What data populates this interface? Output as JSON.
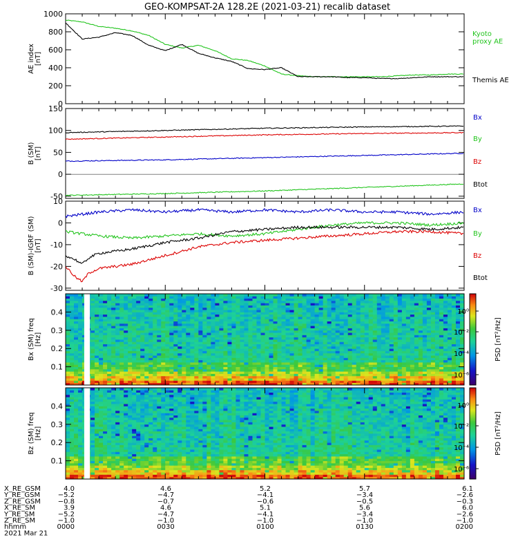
{
  "title": "GEO-KOMPSAT-2A 128.2E (2021-03-21) recalib dataset",
  "colors": {
    "black": "#000000",
    "blue": "#0000c8",
    "green": "#22c41d",
    "red": "#dc0000"
  },
  "chart_data": [
    {
      "type": "line",
      "ylabel": "AE index [nT]",
      "ylim": [
        0,
        1000
      ],
      "yticks": [
        0,
        200,
        400,
        600,
        800,
        1000
      ],
      "xlim": [
        0,
        120
      ],
      "x_units": "minutes since 2021-03-21 00:00",
      "legend_placement": "right",
      "series": [
        {
          "name": "Kyoto proxy AE",
          "color": "#22c41d",
          "x": [
            0,
            5,
            10,
            15,
            20,
            25,
            30,
            35,
            40,
            45,
            50,
            55,
            60,
            65,
            70,
            75,
            80,
            85,
            90,
            95,
            100,
            105,
            110,
            115,
            120
          ],
          "values": [
            930,
            910,
            860,
            840,
            810,
            760,
            660,
            620,
            650,
            590,
            500,
            480,
            420,
            330,
            310,
            300,
            300,
            300,
            300,
            300,
            310,
            320,
            320,
            330,
            330
          ]
        },
        {
          "name": "Themis AE",
          "color": "#000000",
          "x": [
            0,
            5,
            10,
            15,
            20,
            25,
            30,
            35,
            40,
            45,
            50,
            55,
            60,
            65,
            70,
            75,
            80,
            85,
            90,
            95,
            100,
            105,
            110,
            115,
            120
          ],
          "values": [
            900,
            720,
            740,
            790,
            760,
            650,
            590,
            660,
            560,
            510,
            470,
            390,
            380,
            400,
            300,
            300,
            300,
            290,
            290,
            280,
            280,
            290,
            300,
            300,
            300
          ]
        }
      ]
    },
    {
      "type": "line",
      "ylabel": "B (SM) [nT]",
      "ylim": [
        -55,
        150
      ],
      "yticks": [
        -50,
        0,
        50,
        100,
        150
      ],
      "xlim": [
        0,
        120
      ],
      "legend_placement": "right",
      "series": [
        {
          "name": "Bx",
          "color": "#0000c8",
          "x": [
            0,
            30,
            60,
            90,
            120
          ],
          "values": [
            30,
            33,
            38,
            43,
            48
          ]
        },
        {
          "name": "By",
          "color": "#22c41d",
          "x": [
            0,
            30,
            60,
            90,
            120
          ],
          "values": [
            -48,
            -44,
            -38,
            -30,
            -22
          ]
        },
        {
          "name": "Bz",
          "color": "#dc0000",
          "x": [
            0,
            30,
            60,
            90,
            120
          ],
          "values": [
            80,
            85,
            90,
            93,
            95
          ]
        },
        {
          "name": "Btot",
          "color": "#000000",
          "x": [
            0,
            30,
            60,
            90,
            120
          ],
          "values": [
            95,
            100,
            105,
            108,
            110
          ]
        }
      ]
    },
    {
      "type": "line",
      "ylabel": "B (SM)-IGRF (SM) [nT]",
      "ylim": [
        -31,
        10
      ],
      "yticks": [
        -30,
        -20,
        -10,
        0,
        10
      ],
      "xlim": [
        0,
        120
      ],
      "legend_placement": "right",
      "series": [
        {
          "name": "Bx",
          "color": "#0000c8",
          "x": [
            0,
            5,
            10,
            20,
            30,
            40,
            50,
            60,
            70,
            80,
            90,
            100,
            110,
            120
          ],
          "values": [
            3,
            4,
            5,
            6,
            5,
            6,
            5,
            6,
            5,
            6,
            5,
            5,
            4,
            5
          ]
        },
        {
          "name": "By",
          "color": "#22c41d",
          "x": [
            0,
            5,
            10,
            20,
            30,
            40,
            50,
            60,
            70,
            80,
            90,
            100,
            110,
            120
          ],
          "values": [
            -4,
            -5,
            -6,
            -7,
            -6,
            -5,
            -6,
            -5,
            -3,
            -1,
            0,
            0,
            -1,
            0
          ]
        },
        {
          "name": "Bz",
          "color": "#dc0000",
          "x": [
            0,
            3,
            5,
            7,
            10,
            20,
            30,
            40,
            50,
            60,
            70,
            80,
            90,
            100,
            110,
            120
          ],
          "values": [
            -20,
            -25,
            -27,
            -23,
            -21,
            -19,
            -15,
            -11,
            -9,
            -8,
            -7,
            -6,
            -5,
            -4,
            -4,
            -5
          ]
        },
        {
          "name": "Btot",
          "color": "#000000",
          "x": [
            0,
            3,
            5,
            7,
            10,
            20,
            30,
            40,
            50,
            60,
            70,
            80,
            90,
            100,
            110,
            120
          ],
          "values": [
            -15,
            -17,
            -19,
            -16,
            -14,
            -12,
            -9,
            -7,
            -4,
            -3,
            -2,
            -2,
            -2,
            -2,
            -3,
            -2
          ]
        }
      ]
    },
    {
      "type": "heatmap",
      "ylabel": "Bx (SM) freq [Hz]",
      "ylim": [
        0,
        0.5
      ],
      "yticks": [
        0.1,
        0.2,
        0.3,
        0.4
      ],
      "xlim": [
        0,
        120
      ],
      "colorbar_label": "PSD [nT²/Hz]",
      "colorbar_ticks": [
        "10⁰",
        "10⁻²",
        "10⁻⁴",
        "10⁻⁶"
      ],
      "data_gap_minutes": [
        5.6,
        7.3
      ]
    },
    {
      "type": "heatmap",
      "ylabel": "Bz (SM) freq [Hz]",
      "ylim": [
        0,
        0.5
      ],
      "yticks": [
        0.1,
        0.2,
        0.3,
        0.4
      ],
      "xlim": [
        0,
        120
      ],
      "colorbar_label": "PSD [nT²/Hz]",
      "colorbar_ticks": [
        "10⁰",
        "10⁻²",
        "10⁻⁴",
        "10⁻⁶"
      ],
      "data_gap_minutes": [
        5.6,
        7.3
      ]
    }
  ],
  "ephemeris": {
    "rows": [
      {
        "label": "X_RE_GSM",
        "values": [
          "4.0",
          "4.6",
          "5.2",
          "5.7",
          "6.1"
        ]
      },
      {
        "label": "Y_RE_GSM",
        "values": [
          "−5.2",
          "−4.7",
          "−4.1",
          "−3.4",
          "−2.6"
        ]
      },
      {
        "label": "Z_RE_GSM",
        "values": [
          "−0.8",
          "−0.7",
          "−0.6",
          "−0.5",
          "−0.3"
        ]
      },
      {
        "label": "X_RE_SM",
        "values": [
          "3.9",
          "4.6",
          "5.1",
          "5.6",
          "6.0"
        ]
      },
      {
        "label": "Y_RE_SM",
        "values": [
          "−5.2",
          "−4.7",
          "−4.1",
          "−3.4",
          "−2.6"
        ]
      },
      {
        "label": "Z_RE_SM",
        "values": [
          "−1.0",
          "−1.0",
          "−1.0",
          "−1.0",
          "−1.0"
        ]
      },
      {
        "label": "hhmm",
        "values": [
          "0000",
          "0030",
          "0100",
          "0130",
          "0200"
        ]
      }
    ],
    "date": "2021 Mar 21"
  }
}
